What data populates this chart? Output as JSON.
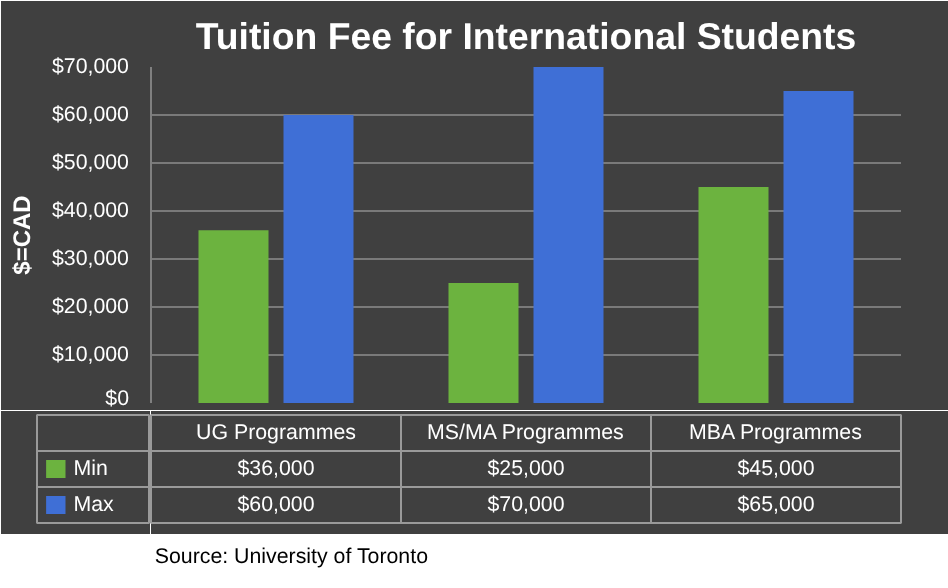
{
  "chart_data": {
    "type": "bar",
    "title": "Tuition Fee for International Students",
    "ylabel": "$=CAD",
    "categories": [
      "UG Programmes",
      "MS/MA Programmes",
      "MBA Programmes"
    ],
    "series": [
      {
        "name": "Min",
        "color": "#6cb33f",
        "values": [
          36000,
          25000,
          45000
        ],
        "value_labels": [
          "$36,000",
          "$25,000",
          "$45,000"
        ]
      },
      {
        "name": "Max",
        "color": "#3f6fd6",
        "values": [
          60000,
          70000,
          65000
        ],
        "value_labels": [
          "$60,000",
          "$70,000",
          "$65,000"
        ]
      }
    ],
    "ylim": [
      0,
      70000
    ],
    "yticks": [
      {
        "value": 0,
        "label": "$0"
      },
      {
        "value": 10000,
        "label": "$10,000"
      },
      {
        "value": 20000,
        "label": "$20,000"
      },
      {
        "value": 30000,
        "label": "$30,000"
      },
      {
        "value": 40000,
        "label": "$40,000"
      },
      {
        "value": 50000,
        "label": "$50,000"
      },
      {
        "value": 60000,
        "label": "$60,000"
      },
      {
        "value": 70000,
        "label": "$70,000"
      }
    ],
    "grid": "y",
    "legend": "bottom",
    "annotations": [
      "Source: University of Toronto"
    ]
  }
}
